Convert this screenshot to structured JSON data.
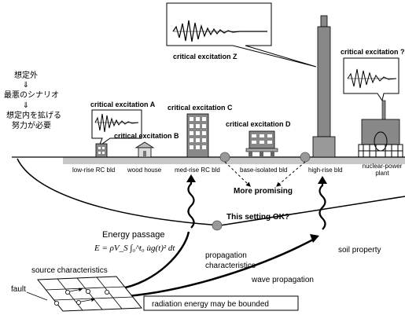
{
  "left_note": {
    "line1": "想定外",
    "arrow1": "⇓",
    "line2": "最悪のシナリオ",
    "arrow2": "⇓",
    "line3": "想定内を拡げる",
    "line4": "努力が必要"
  },
  "excitations": {
    "a": "critical excitation A",
    "b": "critical excitation B",
    "c": "critical excitation C",
    "d": "critical excitation D",
    "z": "critical excitation Z",
    "q": "critical excitation ?"
  },
  "buildings": {
    "low_rise": "low-rise RC bld",
    "wood": "wood house",
    "med_rise": "med-rise RC bld",
    "base_iso": "base-isolated bld",
    "high_rise": "high-rise bld",
    "nuclear_1": "nuclear-power",
    "nuclear_2": "plant"
  },
  "callouts": {
    "more_promising": "More promising",
    "setting_ok": "This setting OK?"
  },
  "energy": {
    "title": "Energy passage",
    "formula": "E = ρV_S ∫₀^t₀ u̇g(t)² dt"
  },
  "labels": {
    "propagation_1": "propagation",
    "propagation_2": "characteristics",
    "soil": "soil property",
    "source": "source characteristics",
    "fault": "fault",
    "wave": "wave propagation",
    "radiation": "radiation energy may be bounded"
  }
}
